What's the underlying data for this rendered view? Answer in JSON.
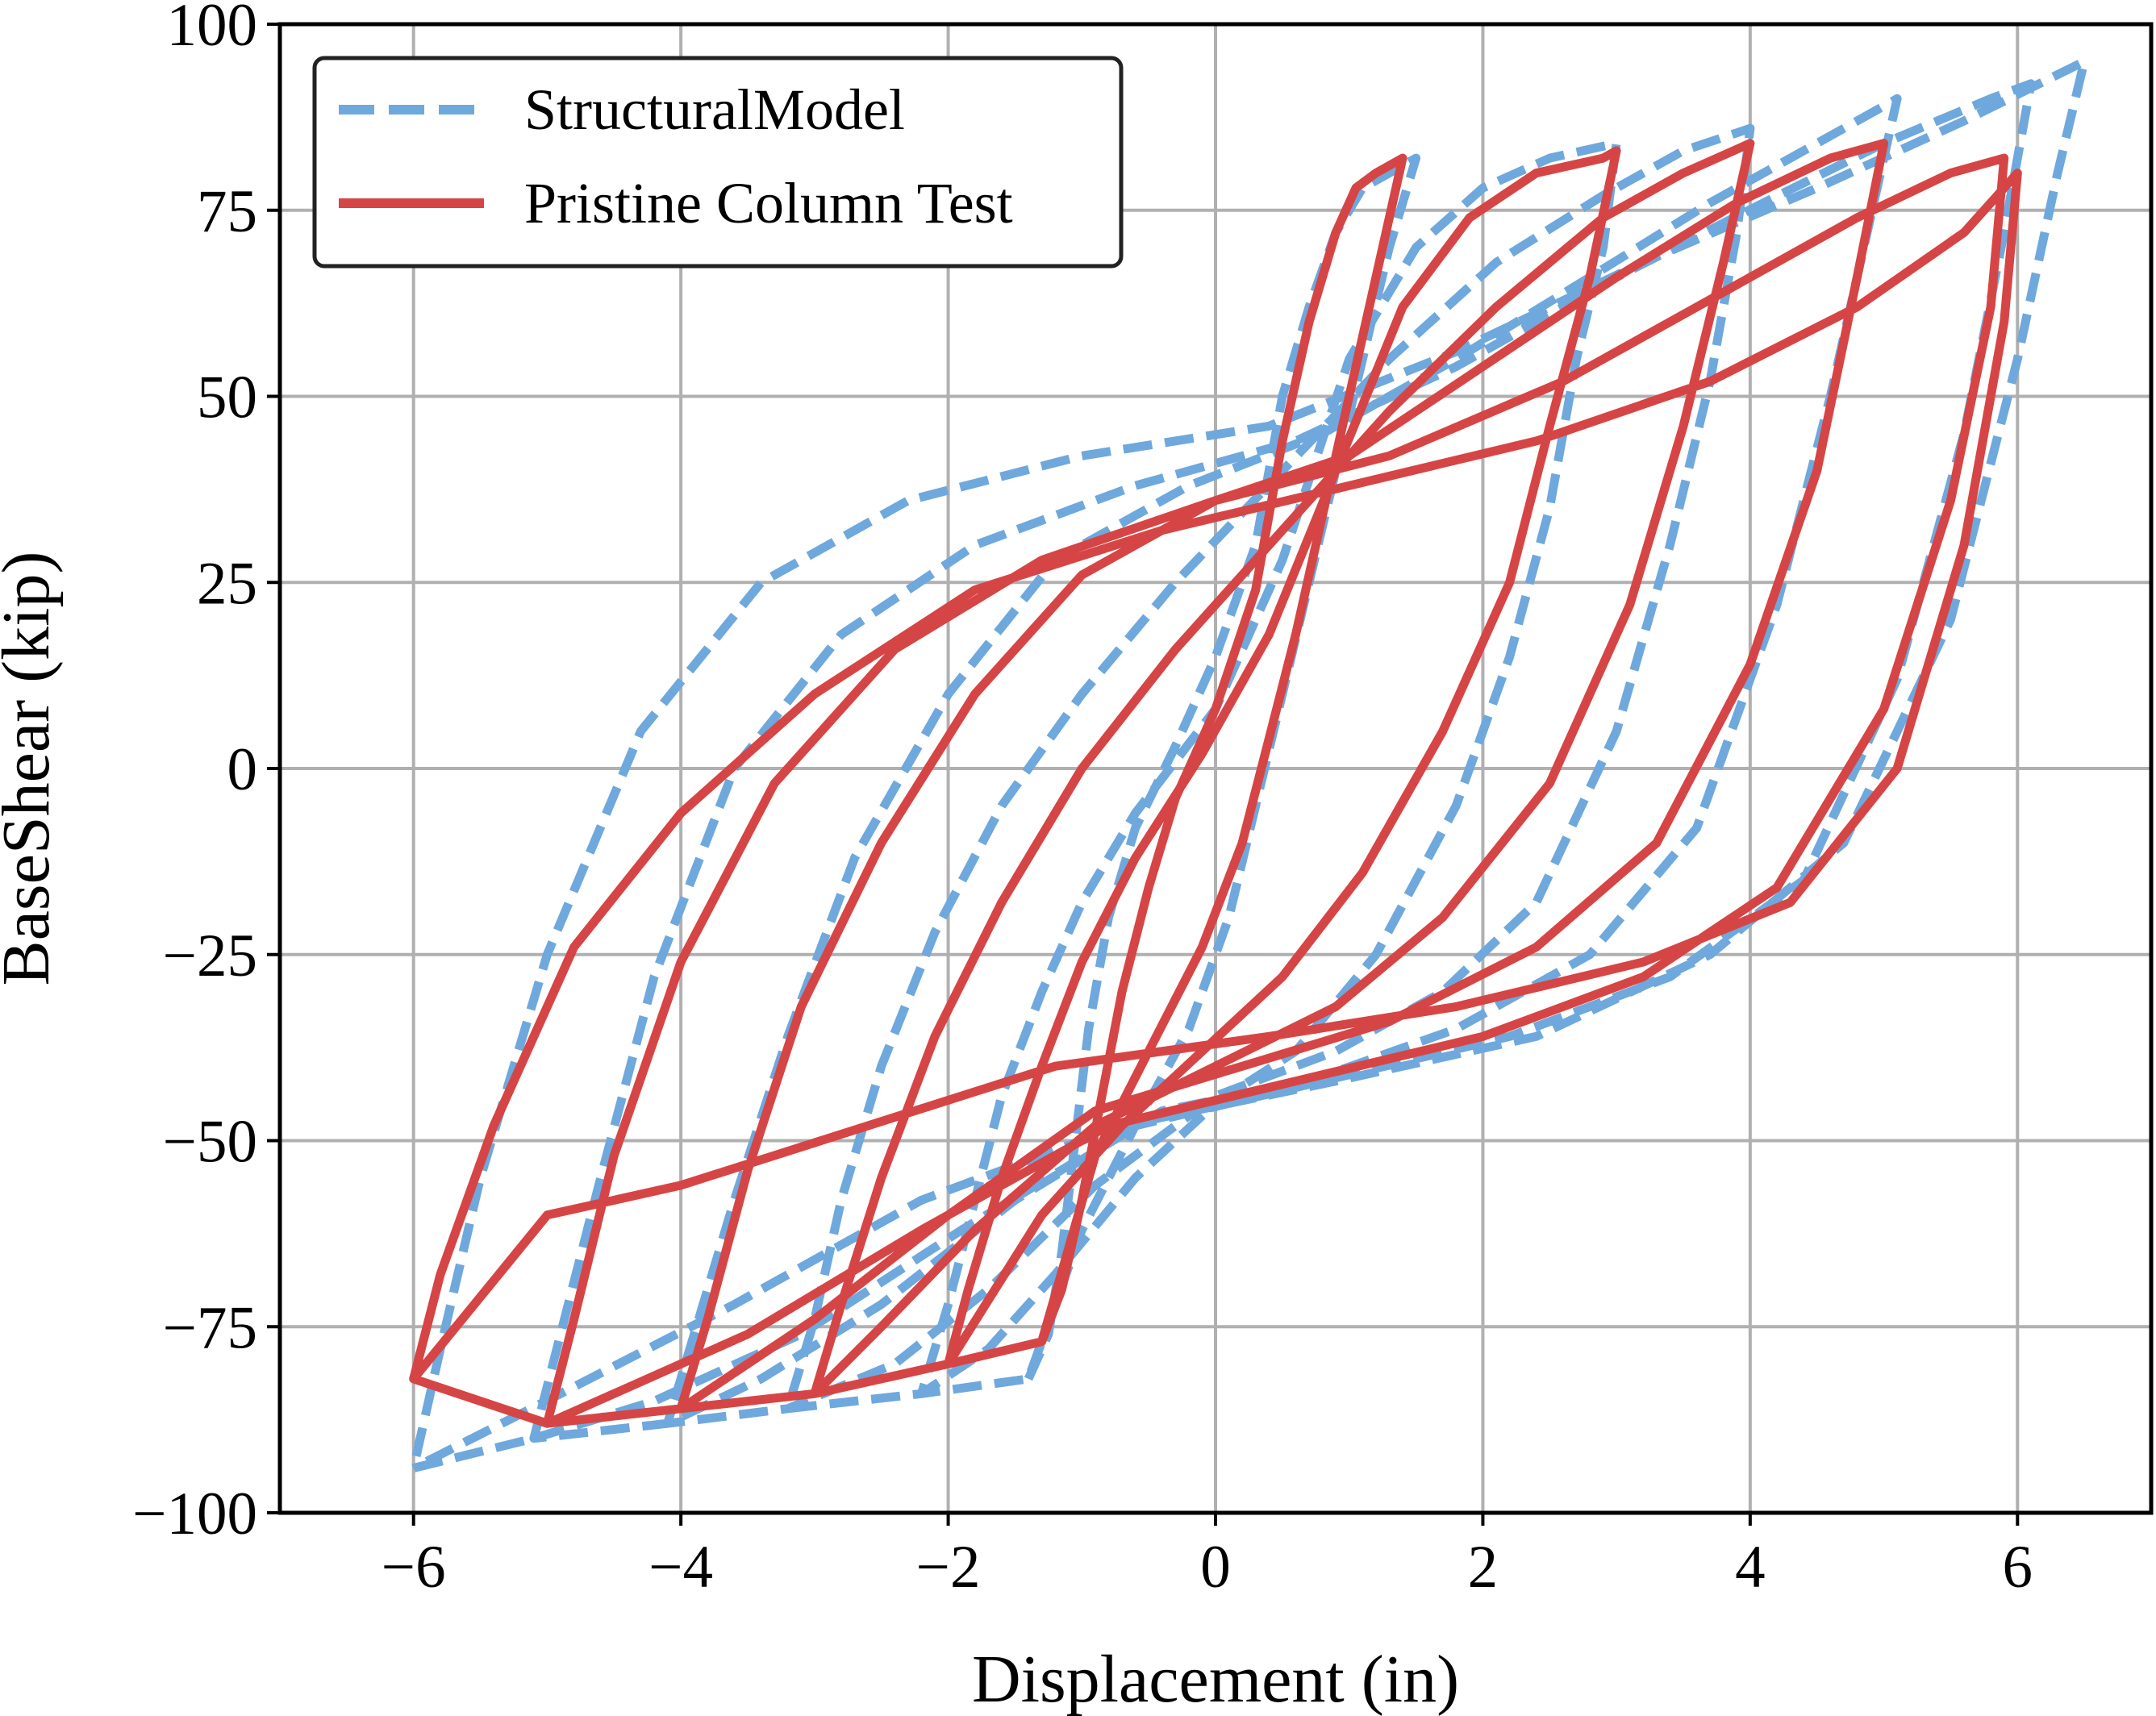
{
  "chart_data": {
    "type": "line",
    "title": "",
    "xlabel": "Displacement (in)",
    "ylabel": "BaseShear (kip)",
    "xlim": [
      -7,
      7
    ],
    "ylim": [
      -100,
      100
    ],
    "xticks": [
      -6,
      -4,
      -2,
      0,
      2,
      4,
      6
    ],
    "yticks": [
      -100,
      -75,
      -50,
      -25,
      0,
      25,
      50,
      75,
      100
    ],
    "xtick_labels": [
      "−6",
      "−4",
      "−2",
      "0",
      "2",
      "4",
      "6"
    ],
    "ytick_labels": [
      "−100",
      "−75",
      "−50",
      "−25",
      "0",
      "25",
      "50",
      "75",
      "100"
    ],
    "grid": true,
    "legend_position": "top-left",
    "series": [
      {
        "name": "StructuralModel",
        "color": "#6fa8dc",
        "style": "dashed",
        "x": [
          -1.4,
          -1.25,
          -1.15,
          -1.05,
          -0.95,
          -0.8,
          -0.6,
          -0.3,
          0.0,
          0.3,
          0.5,
          0.7,
          0.9,
          1.1,
          1.3,
          1.5,
          1.3,
          1.1,
          0.9,
          0.7,
          0.5,
          0.3,
          0.1,
          -0.2,
          -0.6,
          -1.0,
          -1.4,
          -2.2,
          -2.0,
          -1.8,
          -1.6,
          -1.3,
          -1.0,
          -0.6,
          0.0,
          0.5,
          1.0,
          1.5,
          2.0,
          2.5,
          3.0,
          2.9,
          2.7,
          2.5,
          2.2,
          1.8,
          1.2,
          0.6,
          0.0,
          -0.6,
          -1.2,
          -1.7,
          -2.2,
          -3.2,
          -3.0,
          -2.8,
          -2.5,
          -2.1,
          -1.6,
          -1.0,
          -0.3,
          0.5,
          1.3,
          2.1,
          2.9,
          3.5,
          4.0,
          3.9,
          3.7,
          3.4,
          3.0,
          2.4,
          1.7,
          0.9,
          0.0,
          -0.9,
          -1.7,
          -2.4,
          -3.2,
          -4.1,
          -3.9,
          -3.6,
          -3.2,
          -2.7,
          -2.0,
          -1.2,
          -0.2,
          0.8,
          1.8,
          2.8,
          3.7,
          4.5,
          5.1,
          4.9,
          4.6,
          4.2,
          3.6,
          2.8,
          1.8,
          0.7,
          -0.4,
          -1.5,
          -2.5,
          -3.4,
          -4.1,
          -5.1,
          -4.9,
          -4.6,
          -4.2,
          -3.6,
          -2.8,
          -1.8,
          -0.6,
          0.6,
          1.8,
          3.0,
          4.1,
          5.0,
          5.8,
          6.1,
          5.9,
          5.6,
          5.1,
          4.4,
          3.4,
          2.2,
          0.8,
          -0.6,
          -1.9,
          -3.1,
          -4.2,
          -5.1,
          -6.0,
          -5.8,
          -5.5,
          -5.0,
          -4.3,
          -3.4,
          -2.3,
          -1.0,
          0.4,
          1.8,
          3.2,
          4.5,
          5.6,
          6.5,
          6.3,
          6.0,
          5.5,
          4.7,
          3.7,
          2.4,
          0.9,
          -0.7,
          -2.2,
          -3.6,
          -4.9,
          -6.0
        ],
        "y": [
          -82,
          -76,
          -65,
          -50,
          -35,
          -20,
          -8,
          3,
          15,
          30,
          50,
          62,
          72,
          78,
          80,
          82,
          70,
          55,
          40,
          25,
          10,
          -5,
          -20,
          -35,
          -48,
          -62,
          -82,
          -84,
          -72,
          -58,
          -44,
          -30,
          -18,
          -6,
          8,
          28,
          55,
          70,
          78,
          82,
          84,
          70,
          55,
          35,
          15,
          -5,
          -25,
          -38,
          -45,
          -55,
          -68,
          -78,
          -84,
          -86,
          -74,
          -58,
          -40,
          -22,
          -5,
          10,
          25,
          40,
          55,
          68,
          77,
          83,
          86,
          72,
          52,
          30,
          5,
          -18,
          -30,
          -38,
          -44,
          -56,
          -70,
          -80,
          -86,
          -88,
          -76,
          -58,
          -36,
          -12,
          10,
          28,
          38,
          45,
          55,
          66,
          76,
          84,
          90,
          74,
          50,
          22,
          -8,
          -25,
          -35,
          -42,
          -46,
          -58,
          -72,
          -82,
          -88,
          -90,
          -76,
          -55,
          -28,
          0,
          18,
          30,
          38,
          44,
          54,
          66,
          76,
          84,
          90,
          92,
          72,
          45,
          12,
          -15,
          -28,
          -36,
          -42,
          -48,
          -62,
          -76,
          -85,
          -90,
          -94,
          -78,
          -55,
          -25,
          5,
          25,
          36,
          42,
          46,
          56,
          68,
          78,
          87,
          95,
          80,
          55,
          20,
          -10,
          -25,
          -36,
          -42,
          -48,
          -58,
          -72,
          -84,
          -94
        ]
      },
      {
        "name": "Pristine Column Test",
        "color": "#d64545",
        "style": "solid",
        "x": [
          -1.3,
          -1.15,
          -1.0,
          -0.85,
          -0.7,
          -0.5,
          -0.3,
          0.0,
          0.3,
          0.5,
          0.7,
          0.9,
          1.05,
          1.2,
          1.4,
          1.2,
          1.0,
          0.8,
          0.6,
          0.4,
          0.2,
          -0.1,
          -0.5,
          -0.9,
          -1.3,
          -2.0,
          -1.85,
          -1.6,
          -1.3,
          -1.0,
          -0.6,
          -0.1,
          0.4,
          0.9,
          1.4,
          1.9,
          2.4,
          2.9,
          3.0,
          2.8,
          2.5,
          2.2,
          1.7,
          1.1,
          0.5,
          -0.1,
          -0.7,
          -1.3,
          -2.0,
          -3.0,
          -2.8,
          -2.5,
          -2.1,
          -1.6,
          -1.0,
          -0.3,
          0.5,
          1.3,
          2.1,
          2.9,
          3.5,
          4.0,
          3.8,
          3.5,
          3.1,
          2.5,
          1.7,
          0.9,
          0.0,
          -0.9,
          -1.8,
          -2.5,
          -3.0,
          -4.0,
          -3.8,
          -3.5,
          -3.1,
          -2.5,
          -1.8,
          -1.0,
          0.0,
          1.0,
          2.0,
          3.0,
          3.9,
          4.6,
          5.0,
          4.8,
          4.5,
          4.0,
          3.3,
          2.4,
          1.3,
          0.2,
          -0.9,
          -2.0,
          -3.0,
          -4.0,
          -5.0,
          -4.8,
          -4.5,
          -4.0,
          -3.3,
          -2.4,
          -1.3,
          0.0,
          1.3,
          2.6,
          3.8,
          4.8,
          5.5,
          5.9,
          5.8,
          5.5,
          5.0,
          4.2,
          3.2,
          2.0,
          0.6,
          -0.8,
          -2.2,
          -3.5,
          -5.0,
          -6.0,
          -5.8,
          -5.4,
          -4.8,
          -4.0,
          -3.0,
          -1.8,
          -0.4,
          1.0,
          2.4,
          3.7,
          4.8,
          5.6,
          6.0,
          5.9,
          5.6,
          5.1,
          4.3,
          3.2,
          1.8,
          0.4,
          -1.2,
          -2.6,
          -4.0,
          -5.0,
          -6.0
        ],
        "y": [
          -77,
          -70,
          -58,
          -44,
          -30,
          -16,
          -4,
          8,
          24,
          44,
          60,
          72,
          78,
          80,
          82,
          66,
          50,
          34,
          18,
          4,
          -10,
          -24,
          -38,
          -52,
          -77,
          -80,
          -70,
          -55,
          -40,
          -26,
          -12,
          2,
          18,
          40,
          62,
          74,
          80,
          82,
          83,
          66,
          46,
          25,
          5,
          -14,
          -28,
          -38,
          -48,
          -60,
          -80,
          -84,
          -72,
          -55,
          -36,
          -18,
          0,
          16,
          32,
          48,
          62,
          74,
          80,
          84,
          68,
          46,
          22,
          -2,
          -20,
          -32,
          -40,
          -48,
          -62,
          -75,
          -84,
          -86,
          -74,
          -54,
          -32,
          -10,
          10,
          26,
          36,
          42,
          54,
          66,
          76,
          82,
          84,
          66,
          40,
          14,
          -10,
          -24,
          -34,
          -40,
          -46,
          -60,
          -74,
          -86,
          -88,
          -74,
          -52,
          -26,
          -2,
          16,
          28,
          36,
          42,
          52,
          64,
          74,
          80,
          82,
          62,
          36,
          8,
          -16,
          -28,
          -36,
          -42,
          -48,
          -62,
          -76,
          -88,
          -82,
          -68,
          -48,
          -24,
          -6,
          10,
          24,
          32,
          38,
          44,
          52,
          62,
          72,
          80,
          60,
          30,
          0,
          -18,
          -26,
          -32,
          -36,
          -40,
          -48,
          -56,
          -60,
          -82
        ]
      }
    ]
  }
}
